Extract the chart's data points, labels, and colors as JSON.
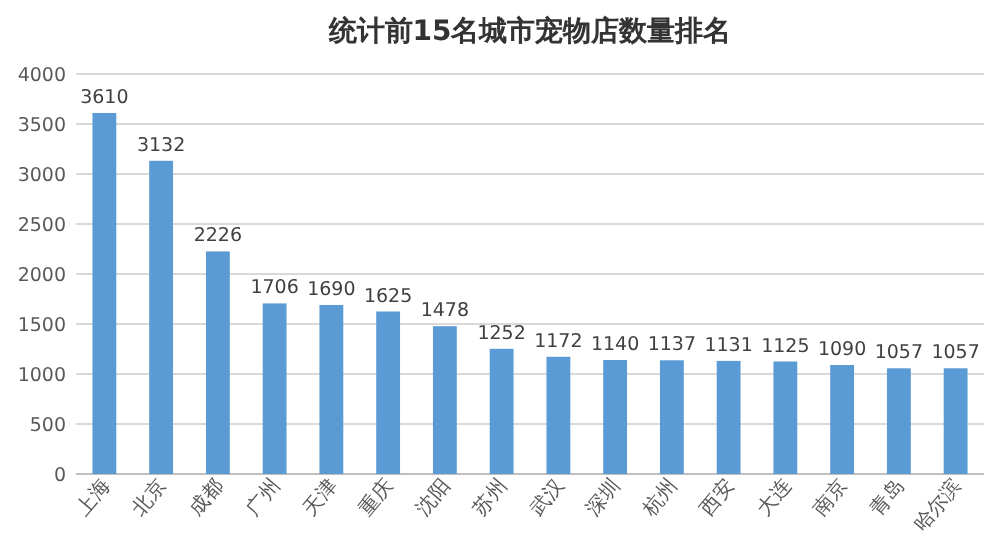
{
  "chart_data": {
    "type": "bar",
    "title": "统计前15名城市宠物店数量排名",
    "categories": [
      "上海",
      "北京",
      "成都",
      "广州",
      "天津",
      "重庆",
      "沈阳",
      "苏州",
      "武汉",
      "深圳",
      "杭州",
      "西安",
      "大连",
      "南京",
      "青岛",
      "哈尔滨"
    ],
    "values": [
      3610,
      3132,
      2226,
      1706,
      1690,
      1625,
      1478,
      1252,
      1172,
      1140,
      1137,
      1131,
      1125,
      1090,
      1057,
      1057
    ],
    "color": "#5b9bd5",
    "ylim": [
      0,
      4000
    ],
    "yticks": [
      0,
      500,
      1000,
      1500,
      2000,
      2500,
      3000,
      3500,
      4000
    ],
    "grid": "y",
    "data_labels": true
  }
}
